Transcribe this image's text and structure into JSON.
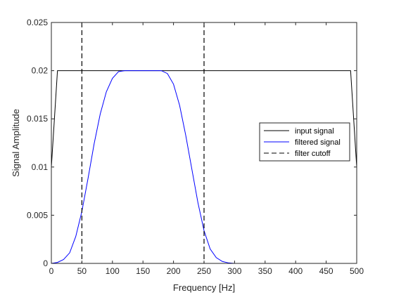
{
  "chart_data": {
    "type": "line",
    "title": "",
    "xlabel": "Frequency [Hz]",
    "ylabel": "Signal Amplitude",
    "xlim": [
      0,
      500
    ],
    "ylim": [
      0,
      0.025
    ],
    "grid": false,
    "legend_position": "right",
    "x_ticks": [
      0,
      50,
      100,
      150,
      200,
      250,
      300,
      350,
      400,
      450,
      500
    ],
    "x_tick_labels": [
      "0",
      "50",
      "100",
      "150",
      "200",
      "250",
      "300",
      "350",
      "400",
      "450",
      "500"
    ],
    "y_ticks": [
      0,
      0.005,
      0.01,
      0.015,
      0.02,
      0.025
    ],
    "y_tick_labels": [
      "0",
      "0.005",
      "0.01",
      "0.015",
      "0.02",
      "0.025"
    ],
    "series": [
      {
        "name": "input signal",
        "color": "#000000",
        "dash": "solid",
        "x": [
          0,
          10,
          490,
          500
        ],
        "y": [
          0.01,
          0.02,
          0.02,
          0.01
        ]
      },
      {
        "name": "filtered signal",
        "color": "#0000ff",
        "dash": "solid",
        "x": [
          0,
          10,
          20,
          30,
          40,
          50,
          60,
          70,
          80,
          90,
          100,
          110,
          120,
          130,
          140,
          150,
          160,
          170,
          180,
          190,
          200,
          210,
          220,
          230,
          240,
          250,
          260,
          270,
          280,
          290,
          300,
          310,
          320,
          330,
          340,
          350,
          360,
          370,
          380,
          390,
          400,
          410,
          420,
          430,
          440,
          450,
          460,
          470,
          480,
          490,
          500
        ],
        "y": [
          0,
          0.0001,
          0.0004,
          0.0011,
          0.0028,
          0.0054,
          0.0088,
          0.0124,
          0.0155,
          0.0178,
          0.0192,
          0.0199,
          0.02,
          0.02,
          0.02,
          0.02,
          0.02,
          0.02,
          0.02,
          0.0197,
          0.0186,
          0.0164,
          0.0133,
          0.0098,
          0.0063,
          0.0034,
          0.0015,
          0.0006,
          0.0002,
          5e-05,
          0,
          0,
          0,
          0,
          0,
          0,
          0,
          0,
          0,
          0,
          0,
          0,
          0,
          0,
          0,
          0,
          0,
          0,
          0,
          0,
          0
        ]
      },
      {
        "name": "filter cutoff",
        "color": "#000000",
        "dash": "dashed",
        "vlines": [
          50,
          250
        ]
      }
    ]
  }
}
